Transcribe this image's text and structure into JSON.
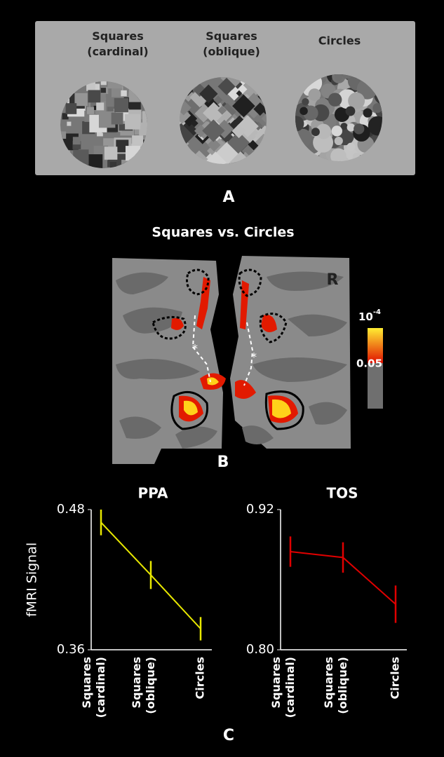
{
  "stimuli": {
    "labels": [
      "Squares (cardinal)",
      "Squares (oblique)",
      "Circles"
    ],
    "panel_label": "A"
  },
  "brain_map": {
    "title": "Squares vs. Circles",
    "hemisphere_label": "R",
    "colorbar": {
      "top": "10",
      "top_exponent": "-4",
      "bottom": "0.05"
    },
    "panel_label": "B"
  },
  "panel_label_c": "C",
  "chart_data": [
    {
      "type": "line",
      "title": "PPA",
      "ylabel": "fMRI Signal",
      "categories": [
        "Squares (cardinal)",
        "Squares (oblique)",
        "Circles"
      ],
      "series": [
        {
          "name": "PPA",
          "color": "#e8e800",
          "values": [
            0.469,
            0.424,
            0.378
          ],
          "errors": [
            0.011,
            0.012,
            0.01
          ]
        }
      ],
      "ylim": [
        0.36,
        0.48
      ],
      "yticks": [
        0.36,
        0.48
      ]
    },
    {
      "type": "line",
      "title": "TOS",
      "categories": [
        "Squares (cardinal)",
        "Squares (oblique)",
        "Circles"
      ],
      "series": [
        {
          "name": "TOS",
          "color": "#e00000",
          "values": [
            0.884,
            0.879,
            0.839
          ],
          "errors": [
            0.013,
            0.013,
            0.016
          ]
        }
      ],
      "ylim": [
        0.8,
        0.92
      ],
      "yticks": [
        {
          "value": 0.8,
          "label": "0.80"
        },
        0.92
      ]
    }
  ]
}
